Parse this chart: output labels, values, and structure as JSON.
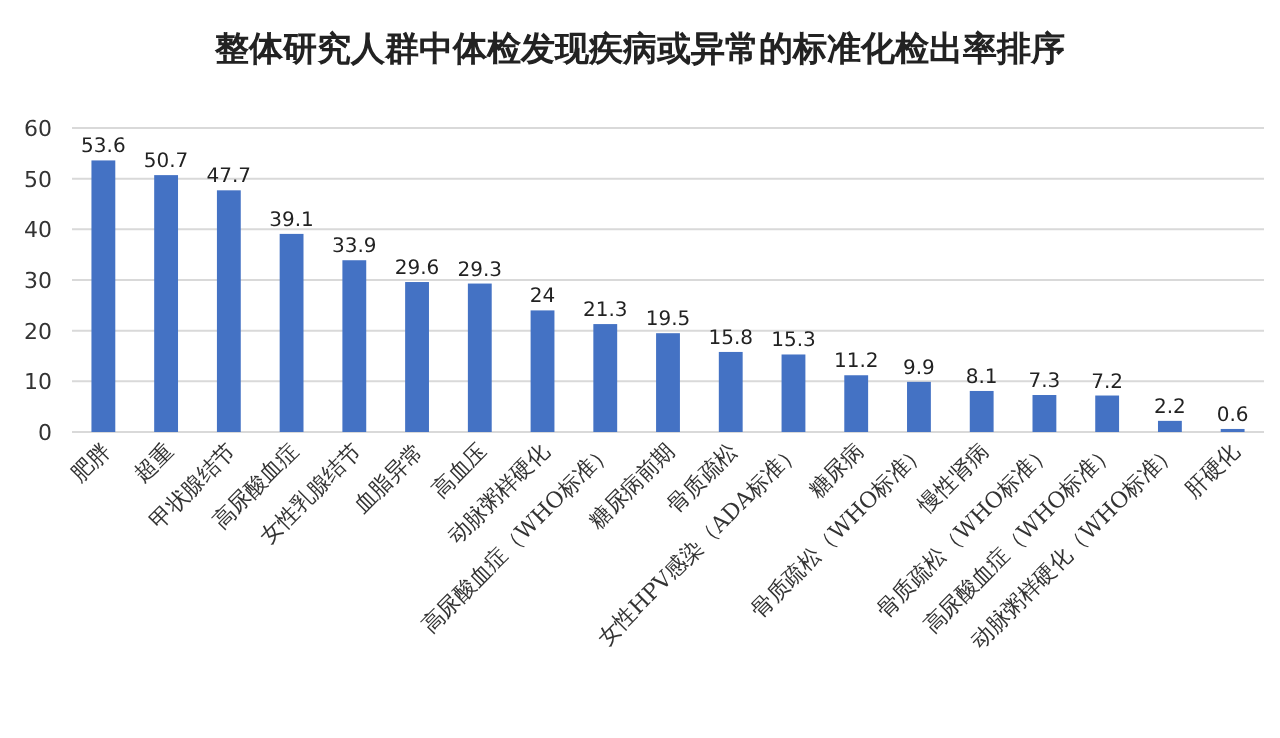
{
  "chart_data": {
    "type": "bar",
    "title": "整体研究人群中体检发现疾病或异常的标准化检出率排序",
    "categories": [
      "肥胖",
      "超重",
      "甲状腺结节",
      "高尿酸血症",
      "女性乳腺结节",
      "血脂异常",
      "高血压",
      "动脉粥样硬化",
      "高尿酸血症（WHO标准）",
      "糖尿病前期",
      "骨质疏松",
      "女性HPV感染（ADA标准）",
      "糖尿病",
      "骨质疏松（WHO标准）",
      "慢性肾病",
      "骨质疏松（WHO标准）",
      "高尿酸血症（WHO标准）",
      "动脉粥样硬化（WHO标准）",
      "肝硬化"
    ],
    "values": [
      53.6,
      50.7,
      47.7,
      39.1,
      33.9,
      29.6,
      29.3,
      24,
      21.3,
      19.5,
      15.8,
      15.3,
      11.2,
      9.9,
      8.1,
      7.3,
      7.2,
      2.2,
      0.6
    ],
    "color": "#4472c4",
    "ylim": [
      0,
      60
    ],
    "yticks": [
      0,
      10,
      20,
      30,
      40,
      50,
      60
    ],
    "grid": "y",
    "data_labels": true
  }
}
